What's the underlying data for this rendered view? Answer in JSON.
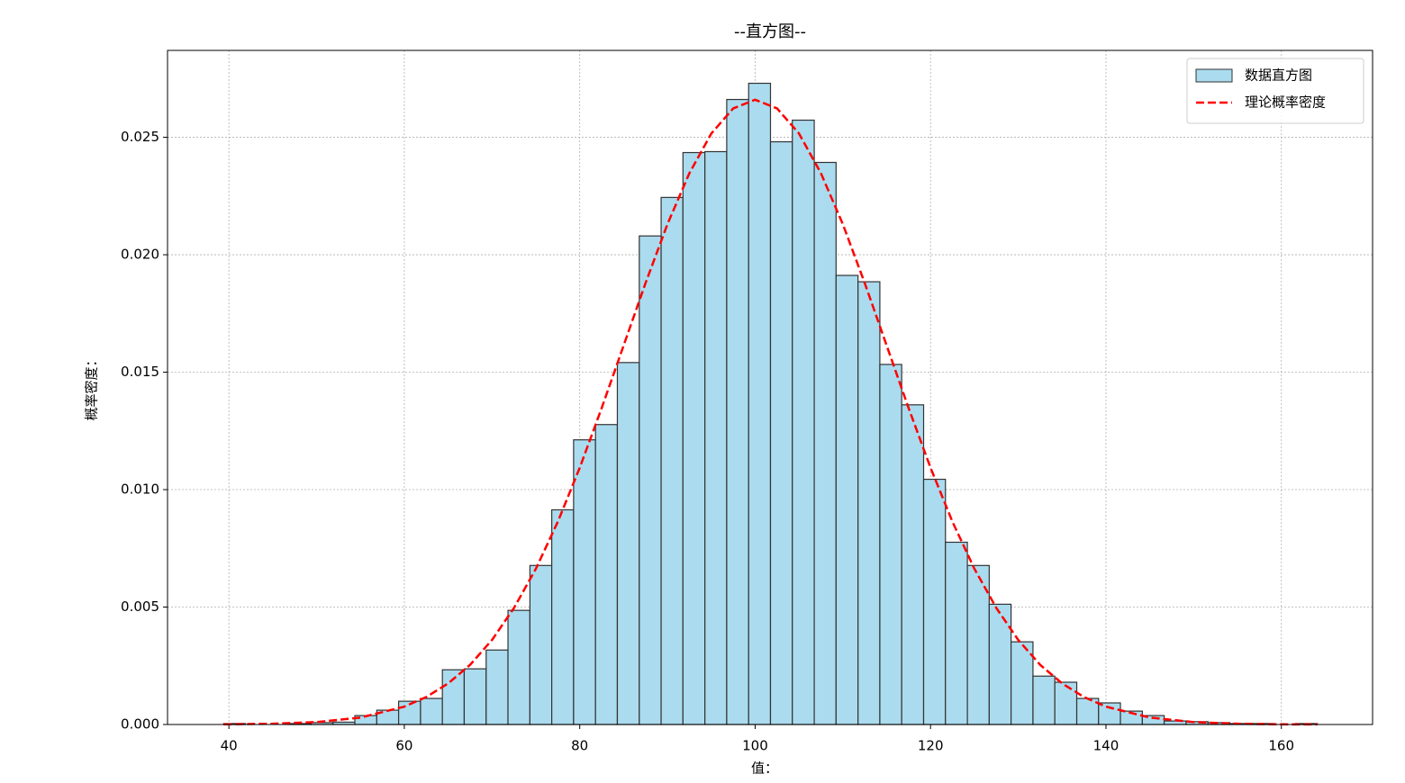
{
  "chart_data": {
    "type": "histogram",
    "title": "--直方图--",
    "x_label": "值：",
    "y_label": "概率密度：",
    "name": "数据直方图",
    "color": "#abdbee",
    "edgecolor": "#333333",
    "bins": [
      39.4,
      41.89,
      44.39,
      46.88,
      49.38,
      51.87,
      54.36,
      56.86,
      59.35,
      61.85,
      64.34,
      66.83,
      69.33,
      71.82,
      74.32,
      76.81,
      79.3,
      81.8,
      84.29,
      86.79,
      89.28,
      91.77,
      94.27,
      96.76,
      99.26,
      101.75,
      104.24,
      106.74,
      109.23,
      111.73,
      114.22,
      116.71,
      119.21,
      121.7,
      124.2,
      126.69,
      129.18,
      131.68,
      134.17,
      136.67,
      139.16,
      141.65,
      144.15,
      146.64,
      149.14,
      151.63,
      154.12,
      156.62,
      159.11,
      161.61,
      164.1
    ],
    "values": [
      4e-05,
      0,
      0,
      4e-05,
      8e-05,
      0.0001,
      0.00038,
      0.00061,
      0.00099,
      0.00111,
      0.00233,
      0.00237,
      0.00317,
      0.00486,
      0.00677,
      0.00914,
      0.01212,
      0.01277,
      0.01541,
      0.0208,
      0.02244,
      0.02435,
      0.02439,
      0.02661,
      0.0273,
      0.02481,
      0.02573,
      0.02393,
      0.01912,
      0.01885,
      0.01533,
      0.01361,
      0.01044,
      0.00776,
      0.00677,
      0.00512,
      0.00352,
      0.00206,
      0.0018,
      0.00111,
      0.00092,
      0.00057,
      0.00038,
      0.00015,
      0.00012,
      8e-05,
      4e-05,
      4e-05,
      0,
      4e-05
    ],
    "lines": [
      {
        "name": "理论概率密度",
        "color": "#ff0000",
        "style": "dashed",
        "x": [
          39.4,
          45,
          50,
          55,
          60,
          62.5,
          65,
          67.5,
          70,
          72.5,
          75,
          77.5,
          80,
          82.5,
          85,
          87.5,
          90,
          92.5,
          95,
          97.5,
          100,
          102.5,
          105,
          107.5,
          110,
          112.5,
          115,
          117.5,
          120,
          122.5,
          125,
          127.5,
          130,
          132.5,
          135,
          137.5,
          140,
          145,
          150,
          155,
          160,
          164.1
        ],
        "values": [
          7.6e-06,
          3.2e-05,
          0.000103,
          0.000295,
          0.00076,
          0.00117,
          0.00175,
          0.00254,
          0.0036,
          0.00496,
          0.00663,
          0.00863,
          0.01093,
          0.01347,
          0.01613,
          0.01879,
          0.0213,
          0.02347,
          0.02516,
          0.02623,
          0.0266,
          0.02623,
          0.02516,
          0.02347,
          0.0213,
          0.01879,
          0.01613,
          0.01347,
          0.01093,
          0.00863,
          0.00663,
          0.00496,
          0.0036,
          0.00254,
          0.00175,
          0.00117,
          0.00076,
          0.000295,
          0.000103,
          3.2e-05,
          7.6e-06,
          2.9e-06
        ]
      }
    ],
    "xlim": [
      33.0,
      170.4
    ],
    "ylim": [
      0,
      0.0287
    ],
    "xticks": [
      40,
      60,
      80,
      100,
      120,
      140,
      160
    ],
    "yticks": [
      {
        "value": 0,
        "label": "0.000"
      },
      0.005,
      {
        "value": 0.01,
        "label": "0.010"
      },
      0.015,
      {
        "value": 0.02,
        "label": "0.020"
      },
      0.025
    ],
    "grid": true,
    "legend": "upper right"
  }
}
